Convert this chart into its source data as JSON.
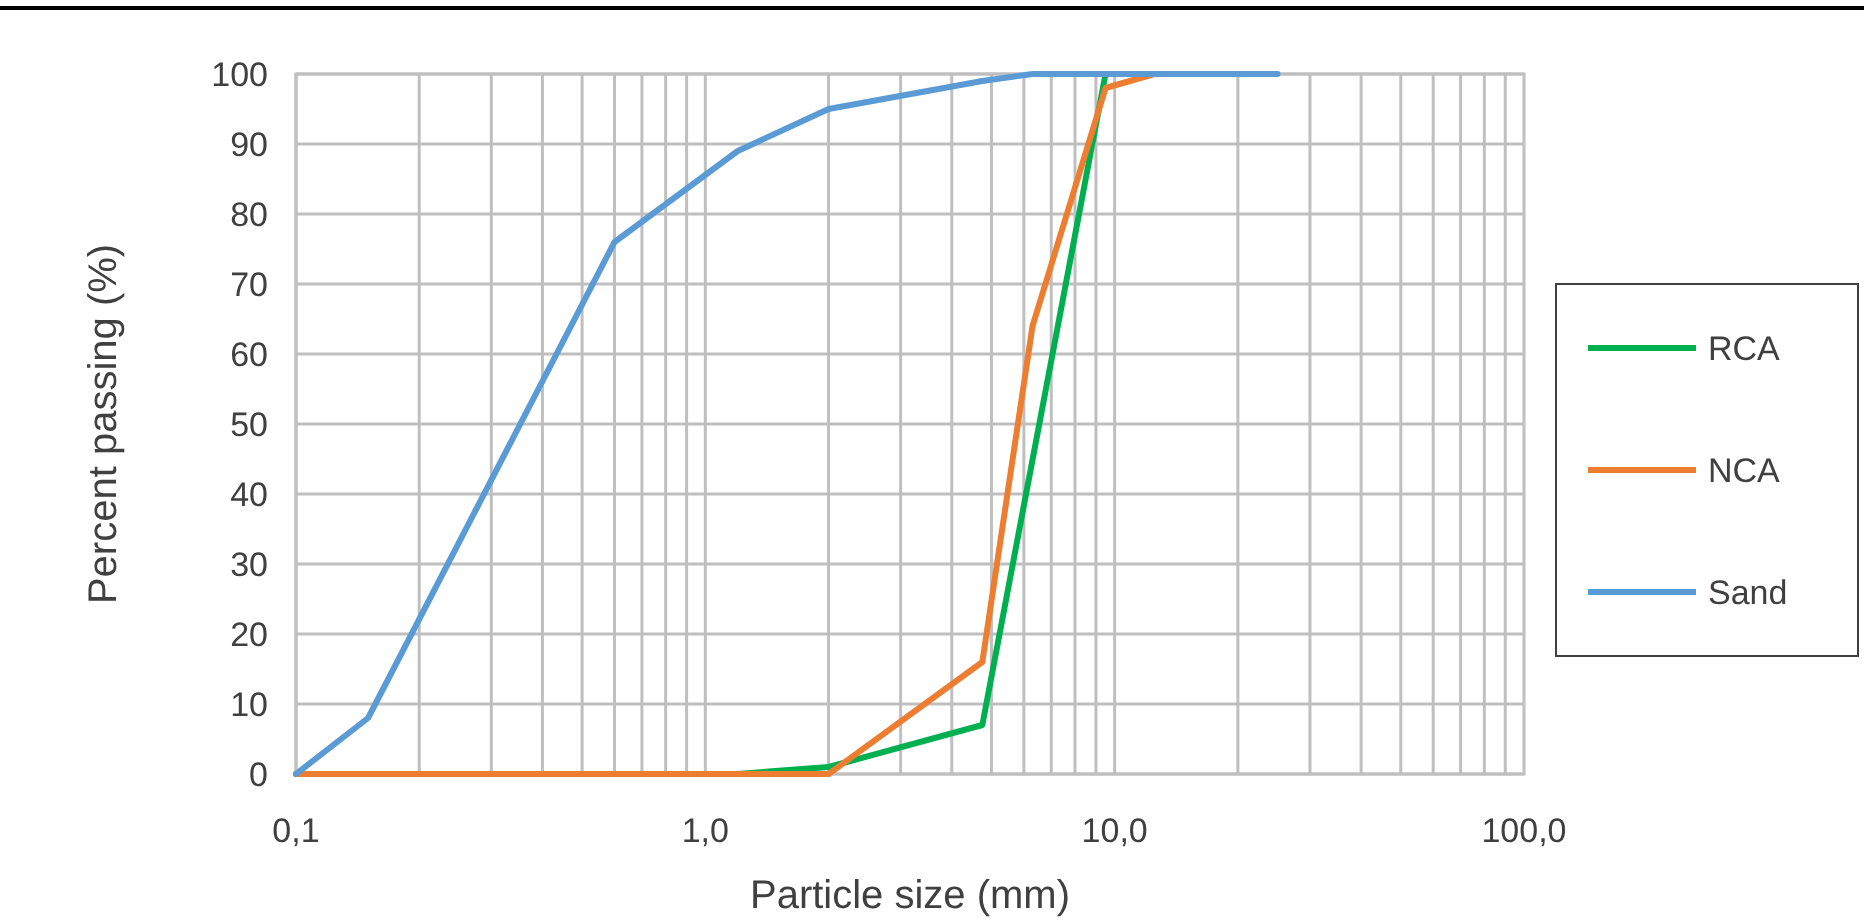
{
  "chart_data": {
    "type": "line",
    "xlabel": "Particle size (mm)",
    "ylabel": "Percent passing (%)",
    "log": "x",
    "xlim": [
      0.1,
      100
    ],
    "xticks": [
      {
        "value": 0.1,
        "label": "0,1"
      },
      {
        "value": 1,
        "label": "1,0"
      },
      {
        "value": 10,
        "label": "10,0"
      },
      {
        "value": 100,
        "label": "100,0"
      }
    ],
    "ylim": [
      0,
      100
    ],
    "yticks": [
      0,
      10,
      20,
      30,
      40,
      50,
      60,
      70,
      80,
      90,
      100
    ],
    "grid": true,
    "legend": "right",
    "marker": "none",
    "line_style": "solid",
    "series": [
      {
        "name": "RCA",
        "color": "#00b050",
        "x": [
          0.1,
          1.2,
          2,
          4.75,
          9.5
        ],
        "values": [
          0,
          0,
          1,
          7,
          100
        ]
      },
      {
        "name": "NCA",
        "color": "#ed7d31",
        "x": [
          0.1,
          2,
          4.75,
          6.3,
          9.5,
          12.5
        ],
        "values": [
          0,
          0,
          16,
          64,
          98,
          100
        ]
      },
      {
        "name": "Sand",
        "color": "#5b9bd5",
        "x": [
          0.1,
          0.15,
          0.6,
          1.2,
          2,
          4.75,
          6.3,
          25
        ],
        "values": [
          0,
          8,
          76,
          89,
          95,
          99,
          100,
          100
        ]
      }
    ]
  }
}
